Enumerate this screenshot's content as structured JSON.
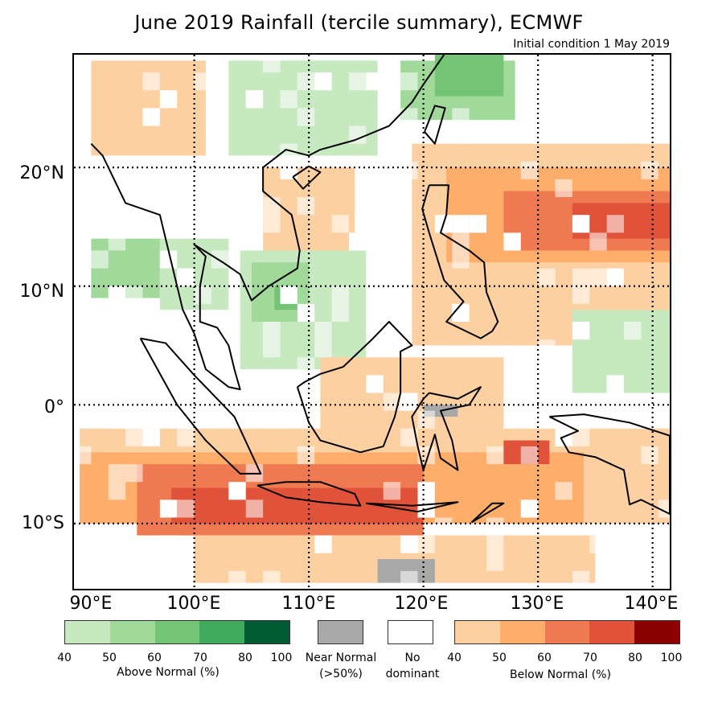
{
  "title": "June 2019 Rainfall (tercile summary), ECMWF",
  "subtitle": "Initial condition 1 May 2019",
  "axes": {
    "lat_labels": [
      "20°N",
      "10°N",
      "0°",
      "10°S"
    ],
    "lon_labels": [
      "90°E",
      "100°E",
      "110°E",
      "120°E",
      "130°E",
      "140°E"
    ]
  },
  "map": {
    "lon_range": [
      89.5,
      141.5
    ],
    "lat_range": [
      -15.5,
      29.5
    ],
    "grid_lats": [
      20,
      10,
      0,
      -10
    ],
    "grid_lons": [
      100,
      110,
      120,
      130,
      140
    ],
    "regions": [
      {
        "name": "southern-china-above",
        "category": "above",
        "level": 1,
        "lon": [
          103,
          116
        ],
        "lat": [
          21,
          29
        ]
      },
      {
        "name": "taiwan-strait-above",
        "category": "above",
        "level": 2,
        "lon": [
          118,
          128
        ],
        "lat": [
          24,
          29
        ]
      },
      {
        "name": "east-china-sea-above",
        "category": "above",
        "level": 3,
        "lon": [
          121,
          127
        ],
        "lat": [
          26,
          29.5
        ]
      },
      {
        "name": "myanmar-north-below",
        "category": "below",
        "level": 1,
        "lon": [
          91,
          101
        ],
        "lat": [
          21,
          29
        ]
      },
      {
        "name": "bay-of-bengal-above",
        "category": "above",
        "level": 2,
        "lon": [
          91,
          97
        ],
        "lat": [
          9,
          14
        ]
      },
      {
        "name": "thailand-above",
        "category": "above",
        "level": 1,
        "lon": [
          97,
          103
        ],
        "lat": [
          8,
          14
        ]
      },
      {
        "name": "south-china-sea-above",
        "category": "above",
        "level": 1,
        "lon": [
          104,
          115
        ],
        "lat": [
          3,
          13
        ]
      },
      {
        "name": "gulf-thailand-above",
        "category": "above",
        "level": 2,
        "lon": [
          105,
          110
        ],
        "lat": [
          7,
          12
        ]
      },
      {
        "name": "gulf-thailand-core",
        "category": "above",
        "level": 3,
        "lon": [
          107,
          109
        ],
        "lat": [
          8,
          10
        ]
      },
      {
        "name": "vietnam-below",
        "category": "below",
        "level": 1,
        "lon": [
          106,
          114
        ],
        "lat": [
          13,
          20
        ]
      },
      {
        "name": "philippine-sea-below",
        "category": "below",
        "level": 1,
        "lon": [
          119,
          141.5
        ],
        "lat": [
          5,
          22
        ]
      },
      {
        "name": "philippine-sea-mid",
        "category": "below",
        "level": 2,
        "lon": [
          122,
          141.5
        ],
        "lat": [
          12,
          20
        ]
      },
      {
        "name": "philippine-sea-high",
        "category": "below",
        "level": 3,
        "lon": [
          127,
          141.5
        ],
        "lat": [
          13,
          18
        ]
      },
      {
        "name": "philippine-sea-core",
        "category": "below",
        "level": 4,
        "lon": [
          133,
          141.5
        ],
        "lat": [
          14,
          17
        ]
      },
      {
        "name": "pacific-equator-above",
        "category": "above",
        "level": 1,
        "lon": [
          133,
          141.5
        ],
        "lat": [
          1,
          8
        ]
      },
      {
        "name": "borneo-below",
        "category": "below",
        "level": 1,
        "lon": [
          111,
          127
        ],
        "lat": [
          -2,
          4
        ]
      },
      {
        "name": "maritime-south-below",
        "category": "below",
        "level": 1,
        "lon": [
          90,
          141.5
        ],
        "lat": [
          -10,
          -2
        ]
      },
      {
        "name": "indian-ocean-mid",
        "category": "below",
        "level": 2,
        "lon": [
          90,
          134
        ],
        "lat": [
          -10,
          -4
        ]
      },
      {
        "name": "java-high",
        "category": "below",
        "level": 3,
        "lon": [
          95,
          120
        ],
        "lat": [
          -11,
          -5
        ]
      },
      {
        "name": "java-core",
        "category": "below",
        "level": 4,
        "lon": [
          98,
          120
        ],
        "lat": [
          -10,
          -7
        ]
      },
      {
        "name": "banda-sea-core",
        "category": "below",
        "level": 4,
        "lon": [
          127,
          131
        ],
        "lat": [
          -5,
          -3
        ]
      },
      {
        "name": "south-indian-ocean-below",
        "category": "below",
        "level": 1,
        "lon": [
          100,
          135
        ],
        "lat": [
          -15,
          -11
        ]
      },
      {
        "name": "java-sea-near",
        "category": "near",
        "level": 1,
        "lon": [
          116,
          121
        ],
        "lat": [
          -15,
          -13
        ]
      },
      {
        "name": "sulawesi-near",
        "category": "near",
        "level": 1,
        "lon": [
          120,
          123
        ],
        "lat": [
          -1,
          0
        ]
      }
    ]
  },
  "legend": {
    "above": {
      "caption": "Above Normal (%)",
      "ticks": [
        "40",
        "50",
        "60",
        "70",
        "80",
        "100"
      ],
      "colors": [
        "#c7e9c0",
        "#a1d99b",
        "#74c476",
        "#41ab5d",
        "#005a32"
      ]
    },
    "near": {
      "caption_line1": "Near Normal",
      "caption_line2": "(>50%)",
      "color": "#a8a8a8"
    },
    "none": {
      "caption_line1": "No",
      "caption_line2": "dominant",
      "color": "#ffffff"
    },
    "below": {
      "caption": "Below Normal (%)",
      "ticks": [
        "40",
        "50",
        "60",
        "70",
        "80",
        "100"
      ],
      "colors": [
        "#fdd0a2",
        "#fdae6b",
        "#ef7a52",
        "#e0533a",
        "#8b0000"
      ]
    }
  }
}
